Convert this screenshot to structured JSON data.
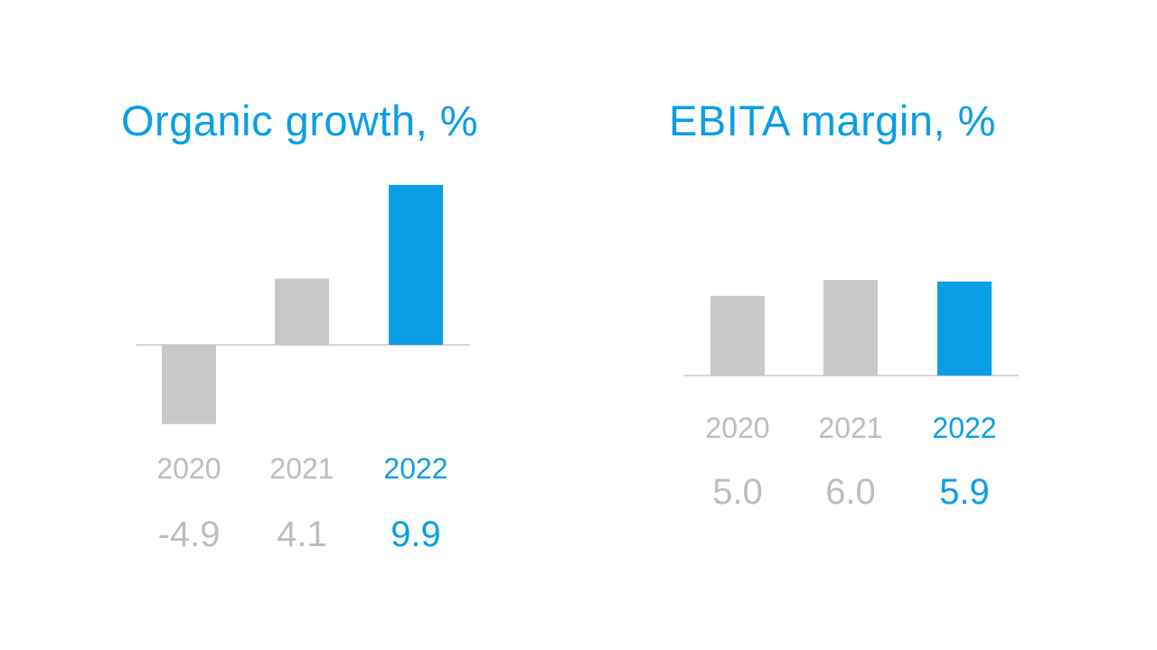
{
  "colors": {
    "highlight": "#0a9ee6",
    "muted_bar": "#c8c8c8",
    "muted_text": "#bdbdbd",
    "axis": "#c8c8c8"
  },
  "chart_data": [
    {
      "type": "bar",
      "title": "Organic growth, %",
      "categories": [
        "2020",
        "2021",
        "2022"
      ],
      "values": [
        -4.9,
        4.1,
        9.9
      ],
      "value_labels": [
        "-4.9",
        "4.1",
        "9.9"
      ],
      "highlight_category": "2022",
      "ylim": [
        -4.9,
        9.9
      ],
      "grid": false,
      "legend": "none"
    },
    {
      "type": "bar",
      "title": "EBITA margin, %",
      "categories": [
        "2020",
        "2021",
        "2022"
      ],
      "values": [
        5.0,
        6.0,
        5.9
      ],
      "value_labels": [
        "5.0",
        "6.0",
        "5.9"
      ],
      "highlight_category": "2022",
      "ylim": [
        0,
        6.0
      ],
      "grid": false,
      "legend": "none"
    }
  ]
}
